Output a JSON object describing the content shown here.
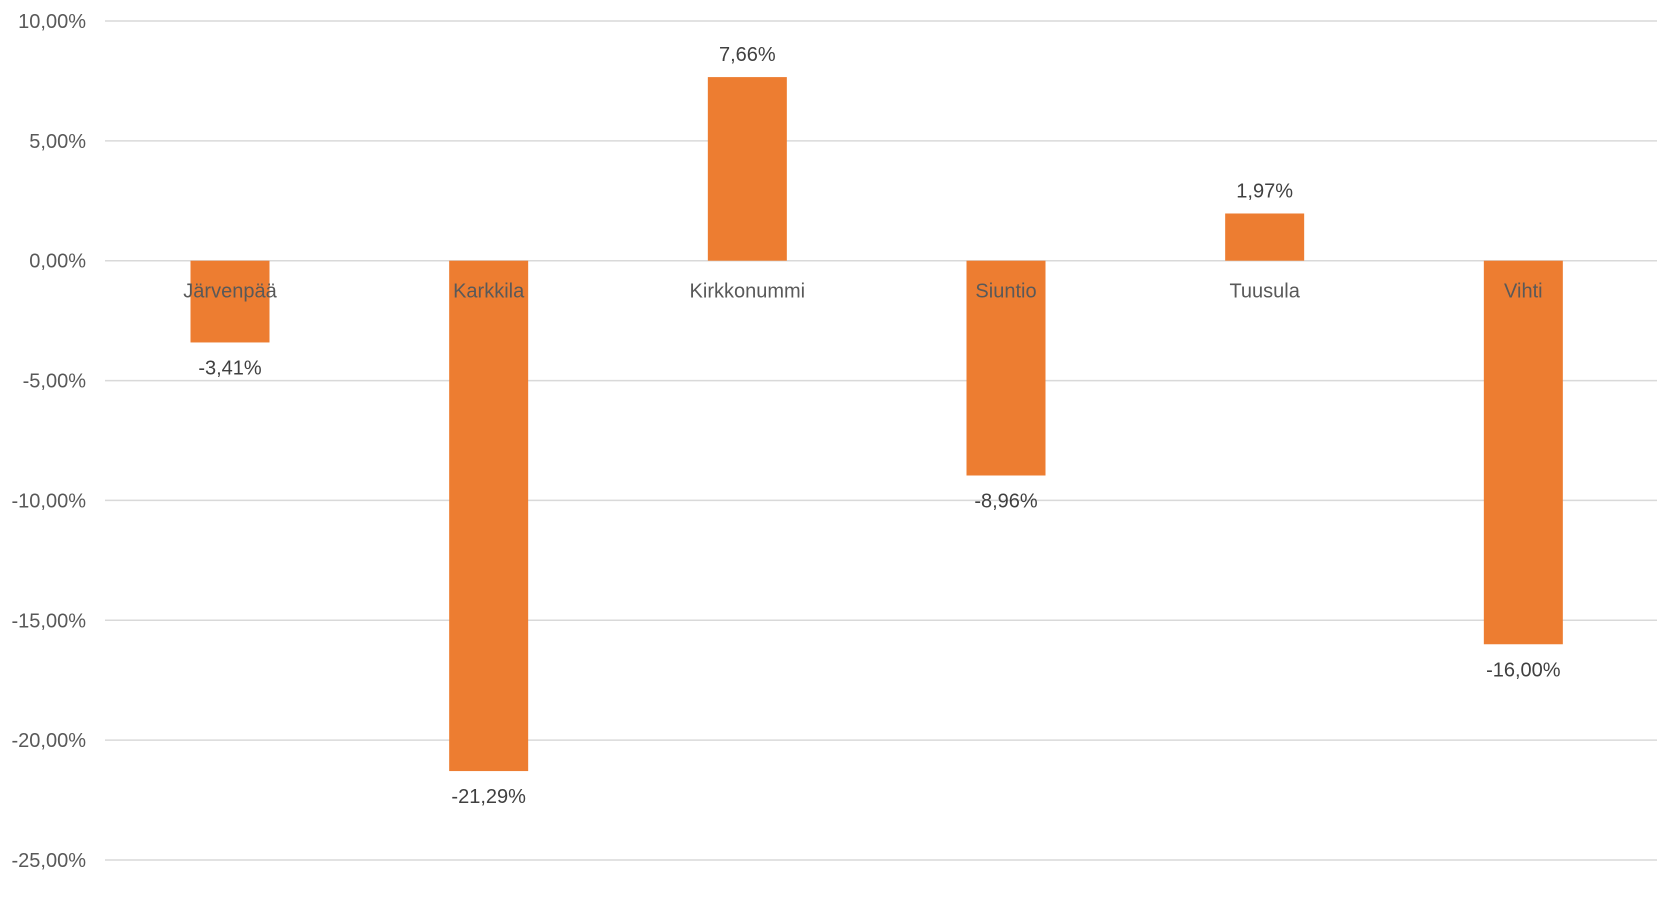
{
  "chart_data": {
    "type": "bar",
    "title": "",
    "xlabel": "",
    "ylabel": "",
    "categories": [
      "Järvenpää",
      "Karkkila",
      "Kirkkonummi",
      "Siuntio",
      "Tuusula",
      "Vihti"
    ],
    "values": [
      -3.41,
      -21.29,
      7.66,
      -8.96,
      1.97,
      -16.0
    ],
    "data_labels": [
      "-3,41%",
      "-21,29%",
      "7,66%",
      "-8,96%",
      "1,97%",
      "-16,00%"
    ],
    "ylim": [
      -25,
      10
    ],
    "yticks": [
      10,
      5,
      0,
      -5,
      -10,
      -15,
      -20,
      -25
    ],
    "ytick_labels": [
      "10,00%",
      "5,00%",
      "0,00%",
      "-5,00%",
      "-10,00%",
      "-15,00%",
      "-20,00%",
      "-25,00%"
    ],
    "grid": true,
    "legend": "none",
    "colors": {
      "bar": "#ed7d31",
      "grid": "#d9d9d9",
      "axis_text": "#595959",
      "label_text": "#404040"
    }
  }
}
